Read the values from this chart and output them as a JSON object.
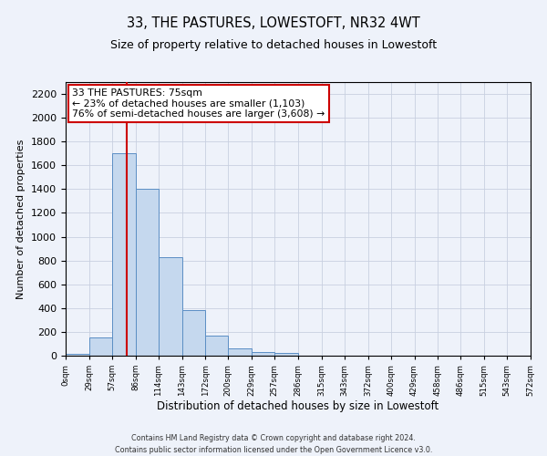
{
  "title": "33, THE PASTURES, LOWESTOFT, NR32 4WT",
  "subtitle": "Size of property relative to detached houses in Lowestoft",
  "xlabel": "Distribution of detached houses by size in Lowestoft",
  "ylabel": "Number of detached properties",
  "bar_color": "#c5d8ee",
  "bar_edge_color": "#5b8ec4",
  "background_color": "#eef2fa",
  "grid_color": "#c8d0e0",
  "annotation_line1": "33 THE PASTURES: 75sqm",
  "annotation_line2": "← 23% of detached houses are smaller (1,103)",
  "annotation_line3": "76% of semi-detached houses are larger (3,608) →",
  "annotation_box_color": "#cc0000",
  "property_line_x": 75,
  "bin_edges": [
    0,
    29,
    57,
    86,
    114,
    143,
    172,
    200,
    229,
    257,
    286,
    315,
    343,
    372,
    400,
    429,
    458,
    486,
    515,
    543,
    572
  ],
  "bar_heights": [
    15,
    155,
    1700,
    1400,
    830,
    380,
    165,
    65,
    30,
    20,
    0,
    0,
    0,
    0,
    0,
    0,
    0,
    0,
    0,
    0
  ],
  "ylim": [
    0,
    2300
  ],
  "yticks": [
    0,
    200,
    400,
    600,
    800,
    1000,
    1200,
    1400,
    1600,
    1800,
    2000,
    2200
  ],
  "footer_line1": "Contains HM Land Registry data © Crown copyright and database right 2024.",
  "footer_line2": "Contains public sector information licensed under the Open Government Licence v3.0."
}
